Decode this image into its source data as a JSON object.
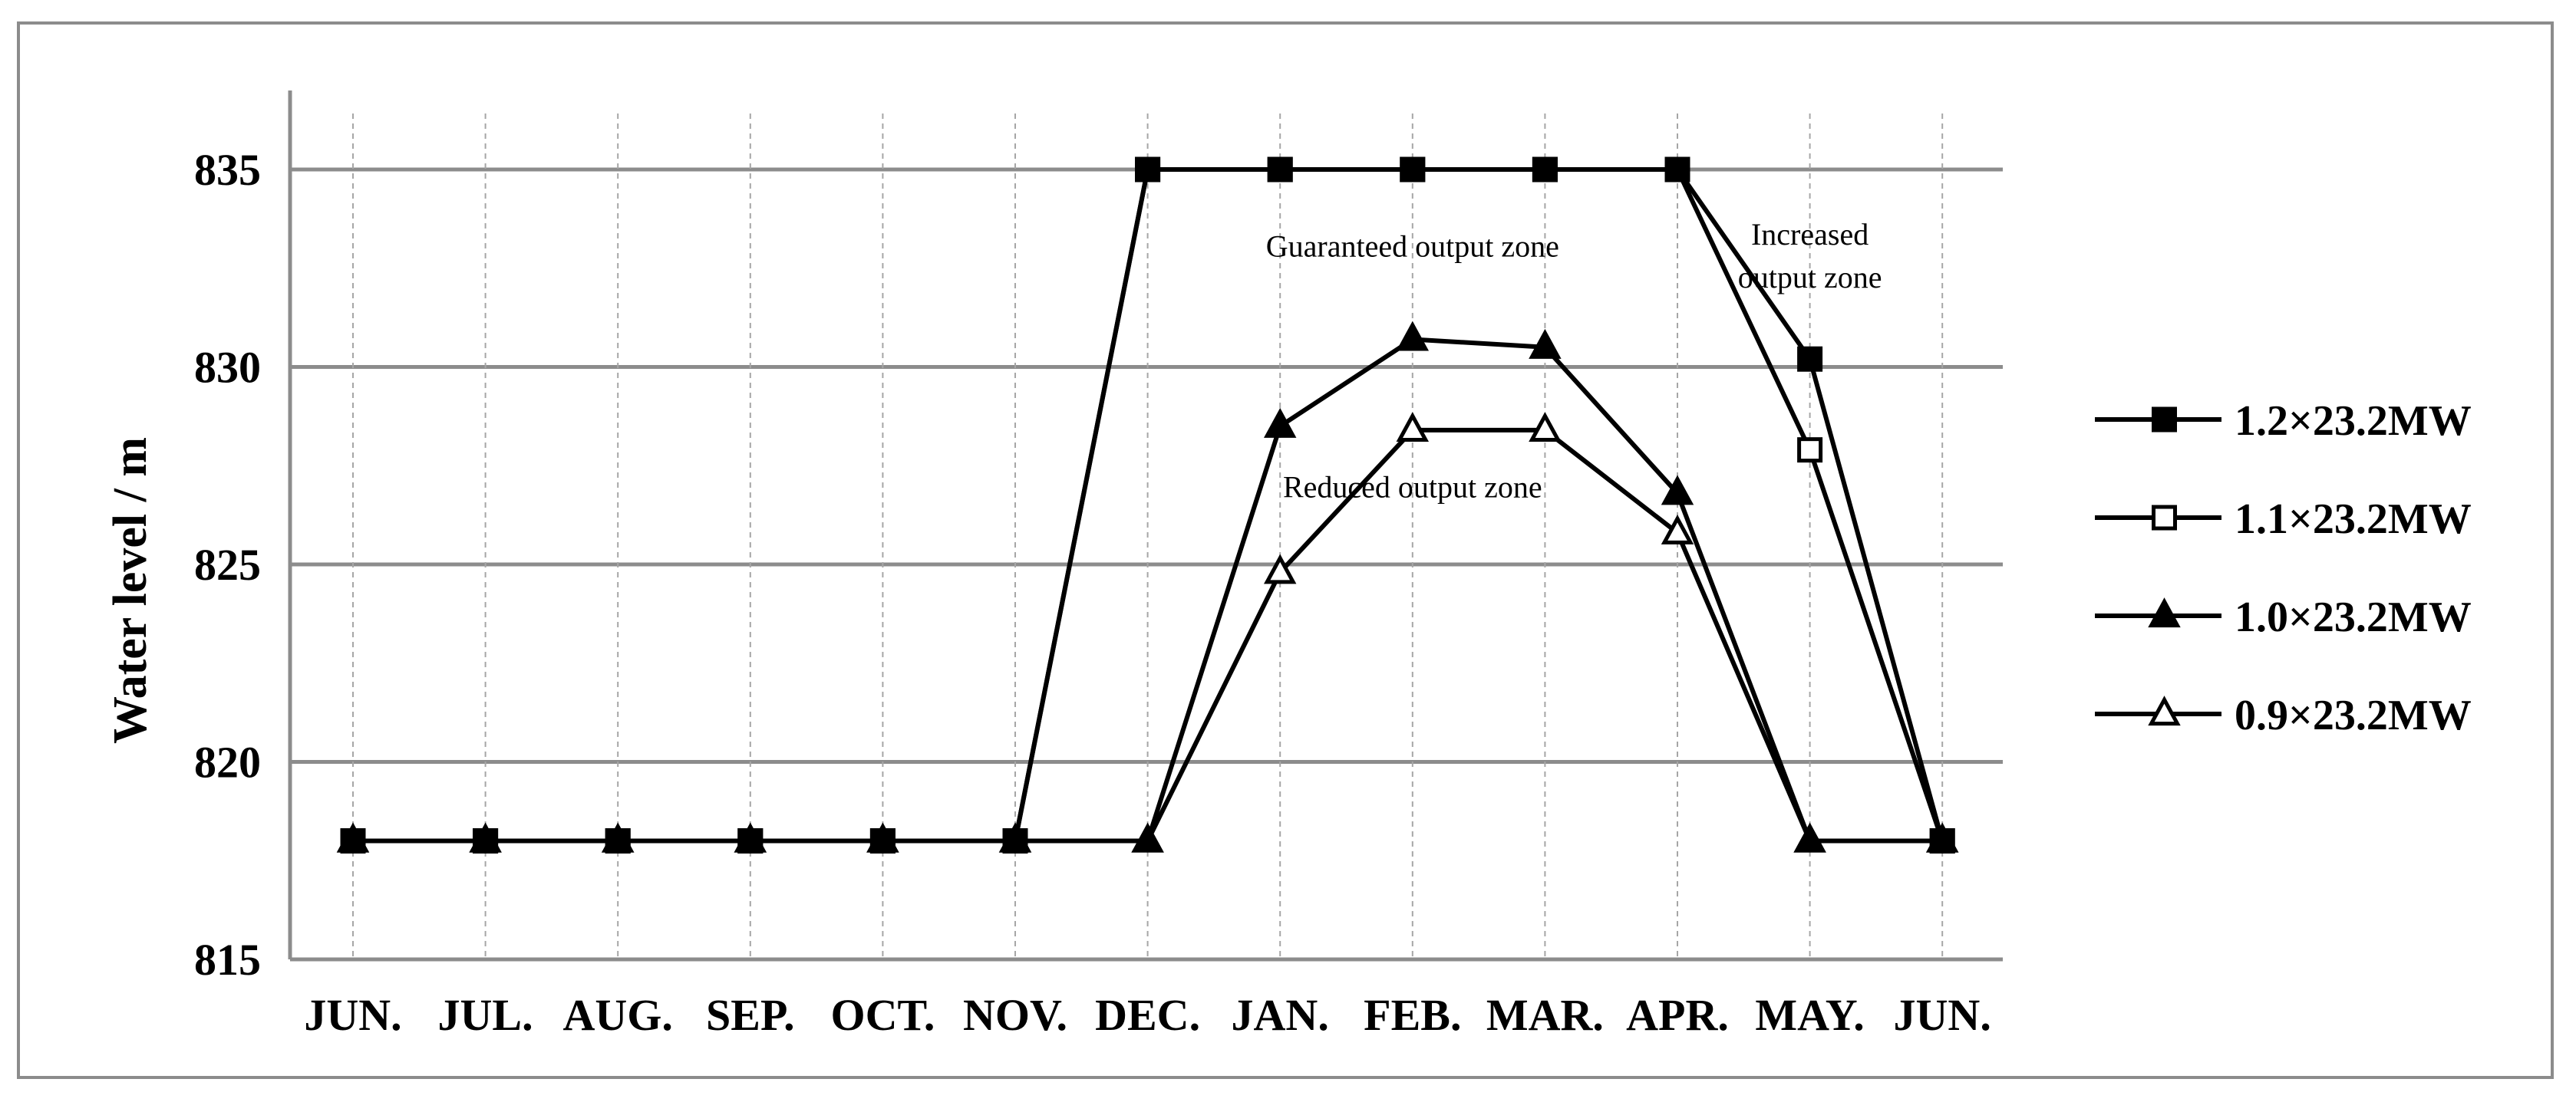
{
  "chart_data": {
    "type": "line",
    "title": "",
    "xlabel": "",
    "ylabel": "Water level / m",
    "ylim": [
      815,
      837
    ],
    "yticks": [
      815,
      820,
      825,
      830,
      835
    ],
    "grid": "horizontal major lines; dashed vertical lines at each month",
    "legend_position": "right",
    "categories": [
      "JUN.",
      "JUL.",
      "AUG.",
      "SEP.",
      "OCT.",
      "NOV.",
      "DEC.",
      "JAN.",
      "FEB.",
      "MAR.",
      "APR.",
      "MAY.",
      "JUN."
    ],
    "series": [
      {
        "name": "1.2×23.2MW",
        "marker": "filled-square",
        "values": [
          818,
          818,
          818,
          818,
          818,
          818,
          835,
          835,
          835,
          835,
          835,
          830.2,
          818
        ]
      },
      {
        "name": "1.1×23.2MW",
        "marker": "open-square",
        "values": [
          818,
          818,
          818,
          818,
          818,
          818,
          835,
          835,
          835,
          835,
          835,
          827.9,
          818
        ]
      },
      {
        "name": "1.0×23.2MW",
        "marker": "filled-triangle",
        "values": [
          818,
          818,
          818,
          818,
          818,
          818,
          818,
          828.5,
          830.7,
          830.5,
          826.8,
          818,
          818
        ]
      },
      {
        "name": "0.9×23.2MW",
        "marker": "open-triangle",
        "values": [
          818,
          818,
          818,
          818,
          818,
          818,
          818,
          824.8,
          828.4,
          828.4,
          825.8,
          818,
          818
        ]
      }
    ],
    "annotations": [
      {
        "lines": [
          "Guaranteed output zone"
        ],
        "x_category": "FEB.",
        "y": 832.8
      },
      {
        "lines": [
          "Increased",
          "output zone"
        ],
        "x_category": "MAY.",
        "y": 833.1
      },
      {
        "lines": [
          "Reduced output zone"
        ],
        "x_category": "FEB.",
        "y": 826.7
      }
    ],
    "colors": {
      "lines": "#000000",
      "grid": "#8c8c8c",
      "frame": "#8c8c8c"
    }
  }
}
